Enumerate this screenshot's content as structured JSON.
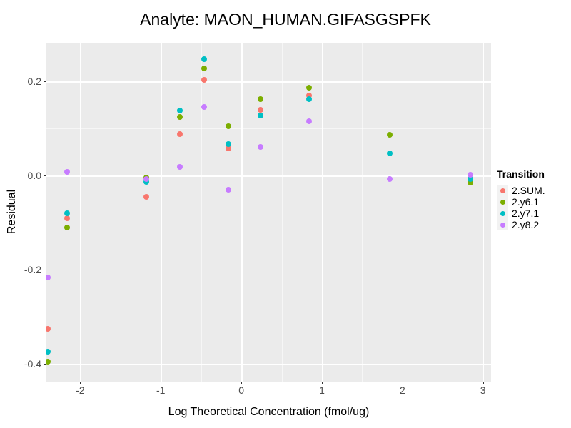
{
  "title": "Analyte: MAON_HUMAN.GIFASGSPFK",
  "colors": {
    "panel_background": "#EBEBEB",
    "gridline": "#FFFFFF",
    "tick_mark": "#333333",
    "tick_label": "#4D4D4D",
    "legend_key_background": "#F2F2F2"
  },
  "chart_data": {
    "type": "scatter",
    "title": "Analyte: MAON_HUMAN.GIFASGSPFK",
    "xlabel": "Log Theoretical Concentration (fmol/ug)",
    "ylabel": "Residual",
    "xlim": [
      -2.42,
      3.1
    ],
    "ylim": [
      -0.438,
      0.282
    ],
    "x_ticks": [
      -2,
      -1,
      0,
      1,
      2,
      3
    ],
    "x_tick_labels": [
      "-2",
      "-1",
      "0",
      "1",
      "2",
      "3"
    ],
    "y_ticks": [
      0.2,
      0.0,
      -0.2,
      -0.4
    ],
    "y_tick_labels": [
      "0.2",
      "0.0",
      "-0.2",
      "-0.4"
    ],
    "x_minor_ticks": [
      -1.5,
      -0.5,
      0.5,
      1.5,
      2.5
    ],
    "y_minor_ticks": [
      0.1,
      -0.1,
      -0.3
    ],
    "grid": true,
    "legend_position": "right",
    "legend_title": "Transition",
    "series": [
      {
        "name": "2.SUM.",
        "color": "#F8766D",
        "points": [
          [
            -2.4,
            -0.326
          ],
          [
            -2.16,
            -0.091
          ],
          [
            -1.18,
            -0.045
          ],
          [
            -0.76,
            0.088
          ],
          [
            -0.46,
            0.203
          ],
          [
            -0.16,
            0.058
          ],
          [
            0.235,
            0.14
          ],
          [
            0.84,
            0.17
          ]
        ]
      },
      {
        "name": "2.y6.1",
        "color": "#7CAE00",
        "points": [
          [
            -2.4,
            -0.396
          ],
          [
            -2.16,
            -0.11
          ],
          [
            -1.18,
            -0.004
          ],
          [
            -0.76,
            0.125
          ],
          [
            -0.46,
            0.228
          ],
          [
            -0.16,
            0.104
          ],
          [
            0.235,
            0.162
          ],
          [
            0.84,
            0.186
          ],
          [
            1.84,
            0.087
          ],
          [
            2.84,
            -0.015
          ]
        ]
      },
      {
        "name": "2.y7.1",
        "color": "#00BFC4",
        "points": [
          [
            -2.4,
            -0.375
          ],
          [
            -2.16,
            -0.08
          ],
          [
            -1.18,
            -0.013
          ],
          [
            -0.76,
            0.138
          ],
          [
            -0.46,
            0.247
          ],
          [
            -0.16,
            0.067
          ],
          [
            0.235,
            0.128
          ],
          [
            0.84,
            0.162
          ],
          [
            1.84,
            0.047
          ],
          [
            2.84,
            -0.008
          ]
        ]
      },
      {
        "name": "2.y8.2",
        "color": "#C77CFF",
        "points": [
          [
            -2.4,
            -0.216
          ],
          [
            -2.16,
            0.008
          ],
          [
            -1.18,
            -0.008
          ],
          [
            -0.76,
            0.019
          ],
          [
            -0.46,
            0.146
          ],
          [
            -0.16,
            -0.031
          ],
          [
            0.235,
            0.06
          ],
          [
            0.84,
            0.116
          ],
          [
            1.84,
            -0.008
          ],
          [
            2.84,
            0.001
          ]
        ]
      }
    ]
  }
}
